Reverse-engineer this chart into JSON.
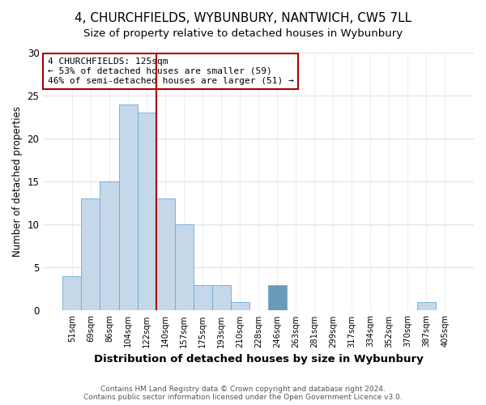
{
  "title": "4, CHURCHFIELDS, WYBUNBURY, NANTWICH, CW5 7LL",
  "subtitle": "Size of property relative to detached houses in Wybunbury",
  "xlabel": "Distribution of detached houses by size in Wybunbury",
  "ylabel": "Number of detached properties",
  "categories": [
    "51sqm",
    "69sqm",
    "86sqm",
    "104sqm",
    "122sqm",
    "140sqm",
    "157sqm",
    "175sqm",
    "193sqm",
    "210sqm",
    "228sqm",
    "246sqm",
    "263sqm",
    "281sqm",
    "299sqm",
    "317sqm",
    "334sqm",
    "352sqm",
    "370sqm",
    "387sqm",
    "405sqm"
  ],
  "values": [
    4,
    13,
    15,
    24,
    23,
    13,
    10,
    3,
    3,
    1,
    0,
    3,
    0,
    0,
    0,
    0,
    0,
    0,
    0,
    1,
    0
  ],
  "bar_color": "#c5d8ea",
  "bar_edge_color": "#6aaad4",
  "highlight_bar_index": 11,
  "highlight_color": "#6b9ab8",
  "vline_index": 4,
  "vline_color": "#aa0000",
  "annotation_text": "4 CHURCHFIELDS: 125sqm\n← 53% of detached houses are smaller (59)\n46% of semi-detached houses are larger (51) →",
  "annotation_box_facecolor": "#ffffff",
  "annotation_box_edgecolor": "#aa0000",
  "ylim": [
    0,
    30
  ],
  "yticks": [
    0,
    5,
    10,
    15,
    20,
    25,
    30
  ],
  "footer_line1": "Contains HM Land Registry data © Crown copyright and database right 2024.",
  "footer_line2": "Contains public sector information licensed under the Open Government Licence v3.0.",
  "background_color": "#ffffff",
  "plot_background_color": "#ffffff",
  "grid_color": "#e0e8f0",
  "title_fontsize": 11,
  "subtitle_fontsize": 9.5
}
